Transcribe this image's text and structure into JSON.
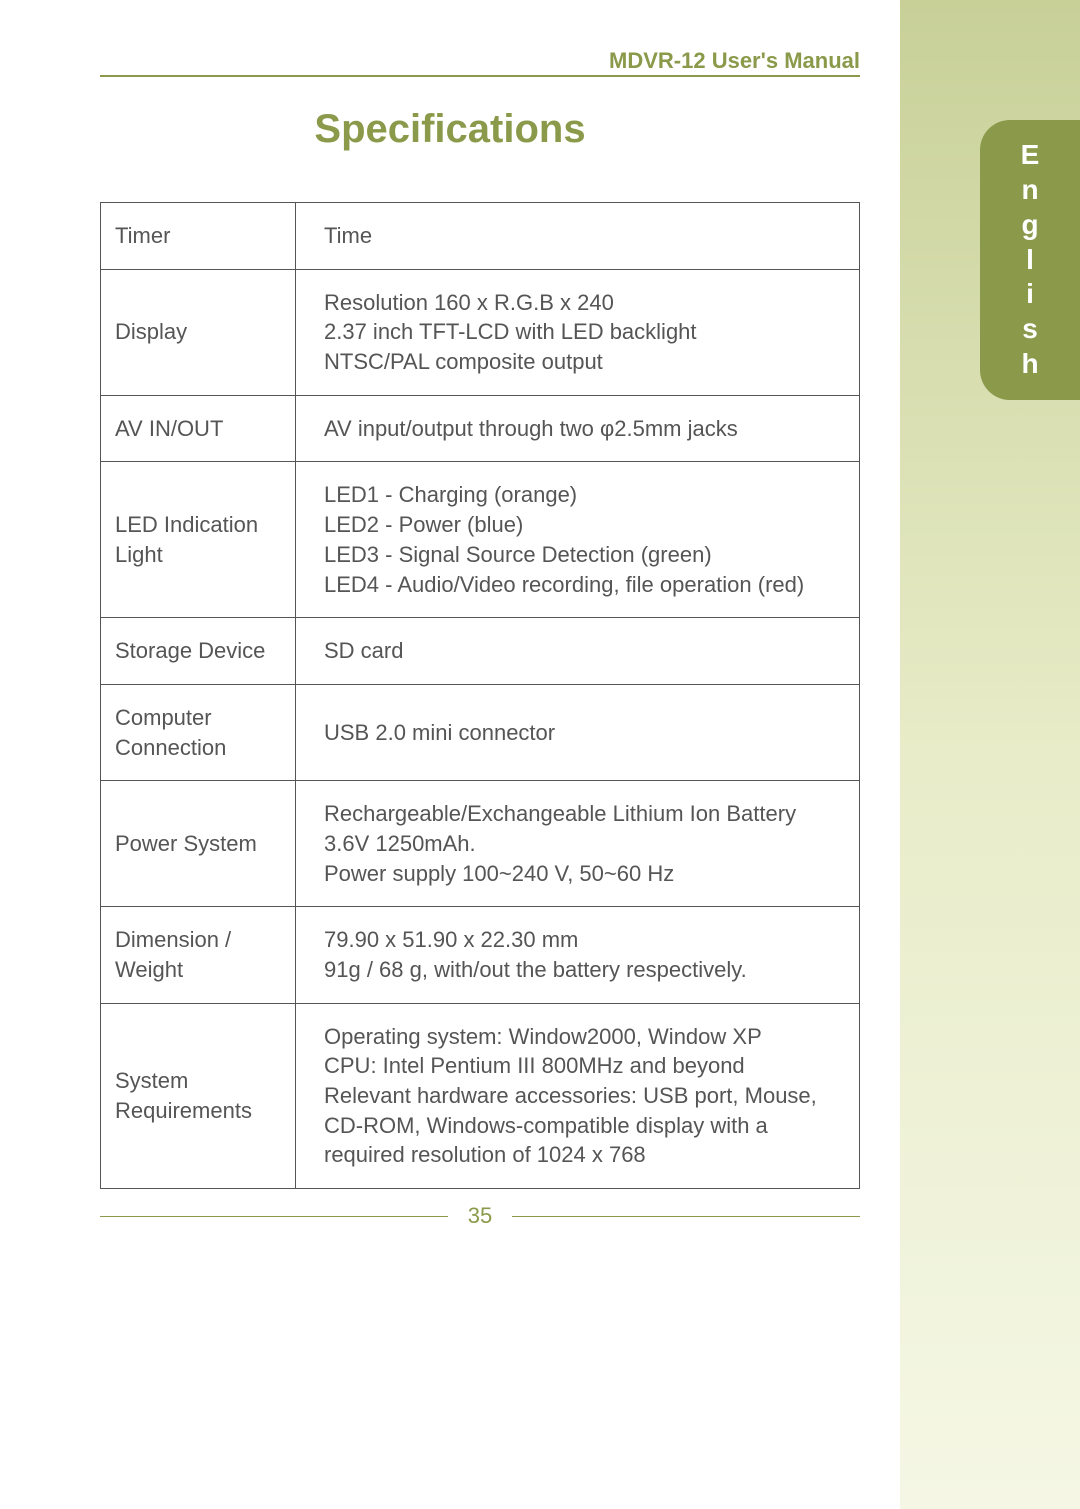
{
  "header": {
    "manual_title": "MDVR-12 User's Manual"
  },
  "title": "Specifications",
  "language_tab": {
    "chars": [
      "E",
      "n",
      "g",
      "l",
      "i",
      "s",
      "h"
    ]
  },
  "table": {
    "rows": [
      {
        "label": "Timer",
        "value": "Time"
      },
      {
        "label": "Display",
        "value": "Resolution 160 x R.G.B x 240\n2.37 inch TFT-LCD with LED backlight\nNTSC/PAL composite output"
      },
      {
        "label": "AV IN/OUT",
        "value": "AV input/output through two φ2.5mm jacks"
      },
      {
        "label": "LED Indication Light",
        "value": "LED1 - Charging (orange)\nLED2 - Power (blue)\nLED3 - Signal Source Detection (green)\nLED4 - Audio/Video recording, file operation (red)"
      },
      {
        "label": "Storage Device",
        "value": "SD card"
      },
      {
        "label": "Computer Connection",
        "value": "USB 2.0 mini connector"
      },
      {
        "label": "Power System",
        "value": "Rechargeable/Exchangeable Lithium Ion Battery 3.6V 1250mAh.\nPower supply 100~240 V, 50~60 Hz"
      },
      {
        "label": "Dimension / Weight",
        "value": "79.90 x 51.90 x 22.30   mm\n91g / 68 g, with/out the battery respectively."
      },
      {
        "label": "System Requirements",
        "value": "Operating system: Window2000, Window XP\nCPU: Intel Pentium III 800MHz and beyond\nRelevant hardware accessories: USB port, Mouse, CD-ROM, Windows-compatible display with a required resolution of 1024 x 768"
      }
    ]
  },
  "footer": {
    "page_number": "35"
  },
  "colors": {
    "accent": "#8a9a4a",
    "text": "#555555",
    "band_top": "#c8d098",
    "band_bottom": "#f5f7e5"
  }
}
